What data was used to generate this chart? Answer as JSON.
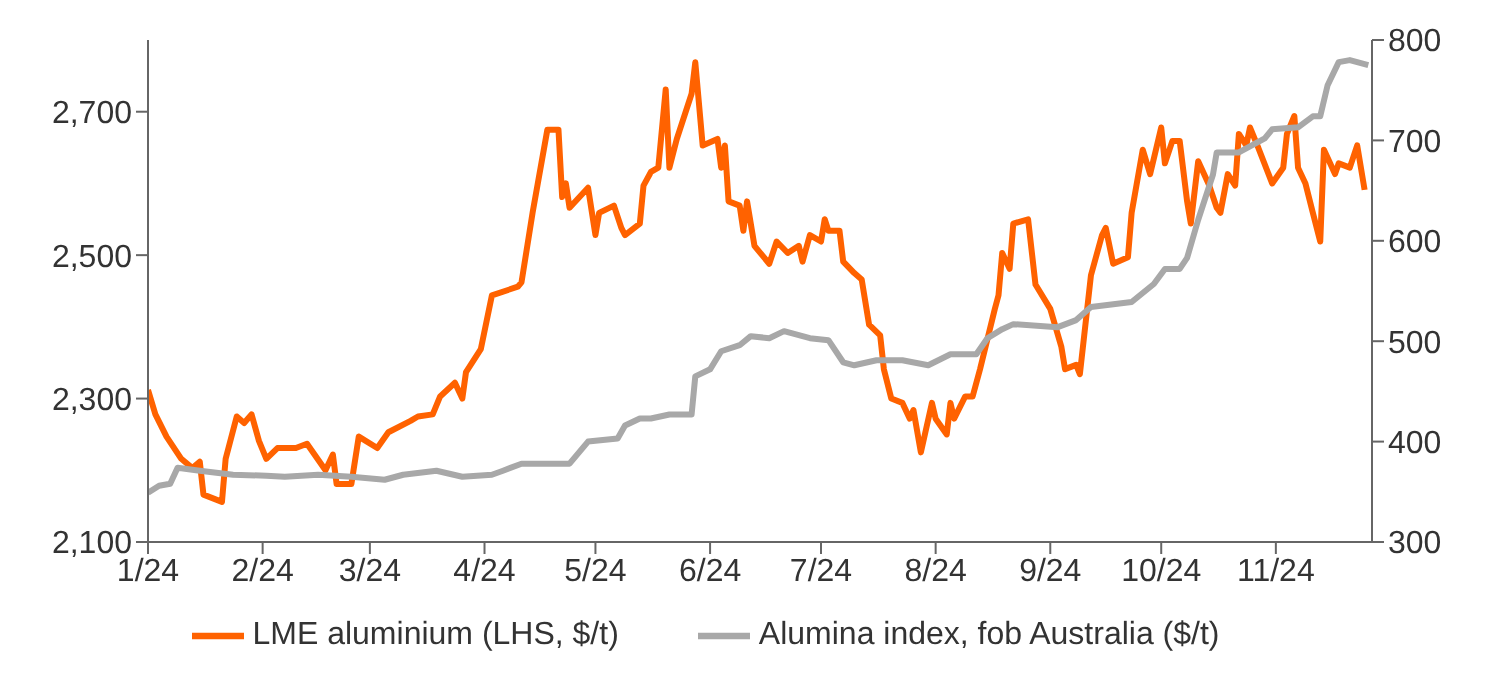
{
  "chart_data": {
    "type": "line",
    "xlim": [
      "2024-01-01",
      "2024-11-27"
    ],
    "xticks": [
      {
        "value": "2024-01-01",
        "label": "1/24"
      },
      {
        "value": "2024-02-01",
        "label": "2/24"
      },
      {
        "value": "2024-03-01",
        "label": "3/24"
      },
      {
        "value": "2024-04-01",
        "label": "4/24"
      },
      {
        "value": "2024-05-01",
        "label": "5/24"
      },
      {
        "value": "2024-06-01",
        "label": "6/24"
      },
      {
        "value": "2024-07-01",
        "label": "7/24"
      },
      {
        "value": "2024-08-01",
        "label": "8/24"
      },
      {
        "value": "2024-09-01",
        "label": "9/24"
      },
      {
        "value": "2024-10-01",
        "label": "10/24"
      },
      {
        "value": "2024-11-01",
        "label": "11/24"
      }
    ],
    "ylim": [
      2100,
      2800
    ],
    "yticks": [
      {
        "value": 2100,
        "label": "2,100"
      },
      {
        "value": 2300,
        "label": "2,300"
      },
      {
        "value": 2500,
        "label": "2,500"
      },
      {
        "value": 2700,
        "label": "2,700"
      }
    ],
    "y2lim": [
      300,
      800
    ],
    "y2ticks": [
      300,
      400,
      500,
      600,
      700,
      800
    ],
    "legend": "bottom",
    "marker": "none",
    "line_style": "solid",
    "series": [
      {
        "name": "LME aluminium (LHS, $/t)",
        "color": "#ff6200",
        "x": [
          "2024-01-01",
          "2024-01-03",
          "2024-01-06",
          "2024-01-10",
          "2024-01-13",
          "2024-01-15",
          "2024-01-16",
          "2024-01-21",
          "2024-01-22",
          "2024-01-25",
          "2024-01-27",
          "2024-01-29",
          "2024-01-31",
          "2024-02-02",
          "2024-02-05",
          "2024-02-10",
          "2024-02-13",
          "2024-02-18",
          "2024-02-20",
          "2024-02-21",
          "2024-02-25",
          "2024-02-27",
          "2024-03-03",
          "2024-03-06",
          "2024-03-12",
          "2024-03-14",
          "2024-03-18",
          "2024-03-20",
          "2024-03-24",
          "2024-03-26",
          "2024-03-27",
          "2024-03-31",
          "2024-04-03",
          "2024-04-10",
          "2024-04-11",
          "2024-04-14",
          "2024-04-18",
          "2024-04-21",
          "2024-04-22",
          "2024-04-23",
          "2024-04-24",
          "2024-04-29",
          "2024-05-01",
          "2024-05-02",
          "2024-05-06",
          "2024-05-08",
          "2024-05-09",
          "2024-05-13",
          "2024-05-14",
          "2024-05-16",
          "2024-05-18",
          "2024-05-20",
          "2024-05-21",
          "2024-05-23",
          "2024-05-27",
          "2024-05-28",
          "2024-05-30",
          "2024-06-03",
          "2024-06-04",
          "2024-06-05",
          "2024-06-06",
          "2024-06-09",
          "2024-06-10",
          "2024-06-11",
          "2024-06-13",
          "2024-06-17",
          "2024-06-19",
          "2024-06-22",
          "2024-06-25",
          "2024-06-26",
          "2024-06-28",
          "2024-07-01",
          "2024-07-02",
          "2024-07-03",
          "2024-07-06",
          "2024-07-07",
          "2024-07-10",
          "2024-07-12",
          "2024-07-14",
          "2024-07-17",
          "2024-07-18",
          "2024-07-20",
          "2024-07-23",
          "2024-07-25",
          "2024-07-26",
          "2024-07-28",
          "2024-07-31",
          "2024-08-01",
          "2024-08-04",
          "2024-08-05",
          "2024-08-06",
          "2024-08-09",
          "2024-08-11",
          "2024-08-13",
          "2024-08-17",
          "2024-08-18",
          "2024-08-19",
          "2024-08-21",
          "2024-08-22",
          "2024-08-26",
          "2024-08-28",
          "2024-09-01",
          "2024-09-04",
          "2024-09-05",
          "2024-09-08",
          "2024-09-09",
          "2024-09-12",
          "2024-09-15",
          "2024-09-16",
          "2024-09-18",
          "2024-09-22",
          "2024-09-23",
          "2024-09-26",
          "2024-09-28",
          "2024-10-01",
          "2024-10-02",
          "2024-10-04",
          "2024-10-06",
          "2024-10-08",
          "2024-10-09",
          "2024-10-11",
          "2024-10-14",
          "2024-10-16",
          "2024-10-17",
          "2024-10-19",
          "2024-10-21",
          "2024-10-22",
          "2024-10-24",
          "2024-10-25",
          "2024-10-27",
          "2024-10-31",
          "2024-11-03",
          "2024-11-04",
          "2024-11-06",
          "2024-11-07",
          "2024-11-09",
          "2024-11-11",
          "2024-11-13",
          "2024-11-14",
          "2024-11-17",
          "2024-11-18",
          "2024-11-21",
          "2024-11-23",
          "2024-11-25"
        ],
        "values": [
          2312,
          2278,
          2247,
          2216,
          2203,
          2212,
          2166,
          2156,
          2216,
          2275,
          2266,
          2278,
          2241,
          2216,
          2231,
          2231,
          2237,
          2200,
          2222,
          2181,
          2181,
          2247,
          2231,
          2253,
          2269,
          2275,
          2278,
          2303,
          2322,
          2300,
          2337,
          2369,
          2444,
          2456,
          2462,
          2559,
          2675,
          2675,
          2581,
          2600,
          2566,
          2594,
          2528,
          2559,
          2569,
          2538,
          2528,
          2544,
          2597,
          2616,
          2622,
          2731,
          2622,
          2662,
          2725,
          2769,
          2653,
          2662,
          2622,
          2653,
          2575,
          2569,
          2534,
          2575,
          2513,
          2488,
          2519,
          2503,
          2513,
          2491,
          2528,
          2519,
          2550,
          2534,
          2534,
          2491,
          2475,
          2466,
          2403,
          2388,
          2341,
          2300,
          2294,
          2272,
          2284,
          2225,
          2294,
          2272,
          2250,
          2294,
          2272,
          2303,
          2303,
          2341,
          2425,
          2444,
          2503,
          2481,
          2544,
          2550,
          2459,
          2425,
          2372,
          2341,
          2347,
          2334,
          2472,
          2528,
          2538,
          2488,
          2497,
          2559,
          2647,
          2613,
          2678,
          2628,
          2659,
          2659,
          2575,
          2544,
          2631,
          2597,
          2566,
          2559,
          2613,
          2597,
          2669,
          2653,
          2678,
          2653,
          2600,
          2622,
          2669,
          2694,
          2622,
          2600,
          2559,
          2519,
          2647,
          2613,
          2628,
          2622,
          2653,
          2591
        ]
      },
      {
        "name": "Alumina index, fob Australia ($/t)",
        "color": "#a8a8a8",
        "axis": "y2",
        "x": [
          "2024-01-01",
          "2024-01-04",
          "2024-01-07",
          "2024-01-09",
          "2024-01-15",
          "2024-01-24",
          "2024-02-02",
          "2024-02-07",
          "2024-02-16",
          "2024-02-25",
          "2024-03-05",
          "2024-03-10",
          "2024-03-19",
          "2024-03-26",
          "2024-04-03",
          "2024-04-06",
          "2024-04-11",
          "2024-04-24",
          "2024-04-29",
          "2024-05-07",
          "2024-05-09",
          "2024-05-13",
          "2024-05-16",
          "2024-05-21",
          "2024-05-27",
          "2024-05-28",
          "2024-06-01",
          "2024-06-04",
          "2024-06-09",
          "2024-06-12",
          "2024-06-17",
          "2024-06-21",
          "2024-06-28",
          "2024-07-03",
          "2024-07-07",
          "2024-07-10",
          "2024-07-16",
          "2024-07-23",
          "2024-07-30",
          "2024-08-05",
          "2024-08-12",
          "2024-08-15",
          "2024-08-19",
          "2024-08-22",
          "2024-09-03",
          "2024-09-08",
          "2024-09-12",
          "2024-09-23",
          "2024-09-29",
          "2024-10-02",
          "2024-10-06",
          "2024-10-08",
          "2024-10-11",
          "2024-10-15",
          "2024-10-16",
          "2024-10-22",
          "2024-10-29",
          "2024-10-31",
          "2024-11-07",
          "2024-11-11",
          "2024-11-13",
          "2024-11-15",
          "2024-11-18",
          "2024-11-21",
          "2024-11-26"
        ],
        "values": [
          349,
          356,
          358,
          374,
          371,
          367,
          366,
          365,
          367,
          365,
          362,
          367,
          371,
          365,
          367,
          371,
          378,
          378,
          400,
          403,
          416,
          423,
          423,
          427,
          427,
          465,
          472,
          490,
          496,
          505,
          503,
          510,
          503,
          501,
          479,
          476,
          481,
          481,
          476,
          487,
          487,
          503,
          512,
          517,
          514,
          521,
          534,
          539,
          557,
          572,
          572,
          583,
          621,
          666,
          688,
          688,
          702,
          711,
          713,
          724,
          724,
          755,
          778,
          780,
          775
        ]
      }
    ]
  }
}
